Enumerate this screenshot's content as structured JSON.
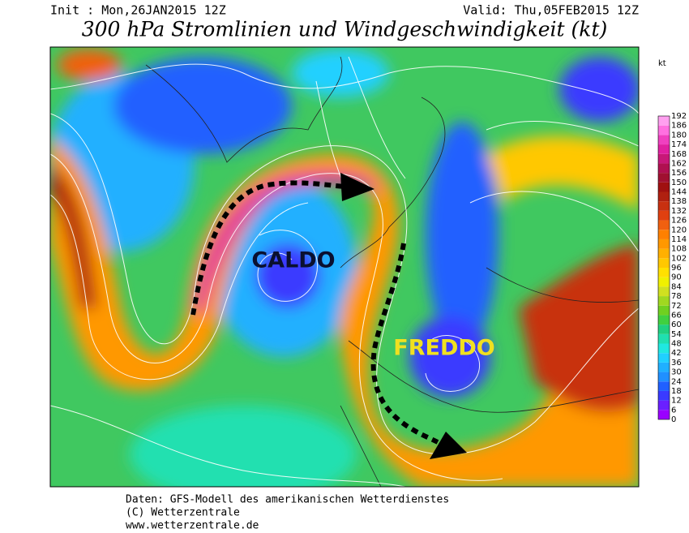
{
  "header": {
    "init": "Init : Mon,26JAN2015 12Z",
    "valid": "Valid: Thu,05FEB2015 12Z",
    "title": "300 hPa Stromlinien und Windgeschwindigkeit (kt)"
  },
  "colorbar": {
    "unit": "kt",
    "levels": [
      0,
      6,
      12,
      18,
      24,
      30,
      36,
      42,
      48,
      54,
      60,
      66,
      72,
      78,
      84,
      90,
      96,
      102,
      108,
      114,
      120,
      126,
      132,
      138,
      144,
      150,
      156,
      162,
      168,
      174,
      180,
      186,
      192
    ],
    "colors": [
      "#9a00ff",
      "#6a20ff",
      "#3a3aff",
      "#2060ff",
      "#2090ff",
      "#20b0ff",
      "#20d0ff",
      "#20e8e0",
      "#20e0b0",
      "#20d080",
      "#40d040",
      "#70d020",
      "#a0d820",
      "#d0e020",
      "#f0f000",
      "#ffe000",
      "#ffc800",
      "#ffb000",
      "#ff9800",
      "#ff8000",
      "#f06010",
      "#e04010",
      "#c83010",
      "#b02010",
      "#a01010",
      "#a01030",
      "#b01050",
      "#c81878",
      "#e020a0",
      "#f040c0",
      "#ff70e0",
      "#ffa0f0"
    ]
  },
  "annotations": {
    "warm": "CALDO",
    "cold": "FREDDO"
  },
  "footer": {
    "source": "Daten: GFS-Modell des amerikanischen Wetterdienstes",
    "copyright": "(C) Wetterzentrale",
    "url": "www.wetterzentrale.de"
  }
}
